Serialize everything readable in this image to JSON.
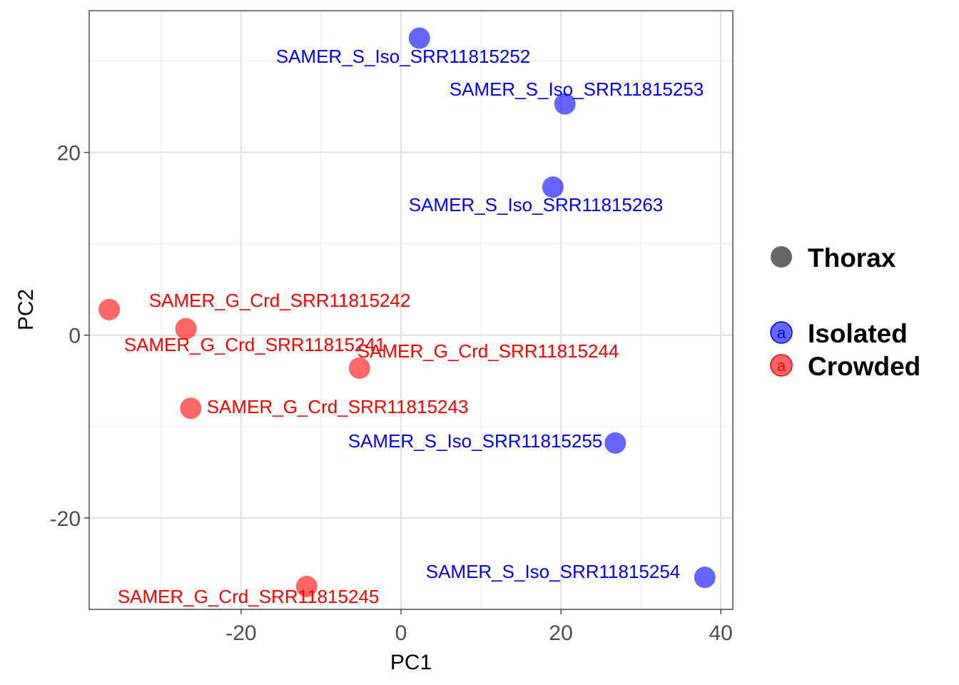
{
  "chart_data": {
    "type": "scatter",
    "title": "",
    "xlabel": "PC1",
    "ylabel": "PC2",
    "xlim": [
      -39,
      41.5
    ],
    "ylim": [
      -30,
      35.5
    ],
    "x_ticks": [
      -20,
      0,
      20,
      40
    ],
    "y_ticks": [
      -20,
      0,
      20
    ],
    "x_minor": [
      -30,
      -10,
      10,
      30
    ],
    "y_minor": [
      -30,
      -10,
      10,
      30
    ],
    "grid": true,
    "legend": {
      "shape_title": "Thorax",
      "shape_color": "#666666",
      "key_glyph": "a",
      "entries": [
        {
          "name": "Isolated",
          "color": "#0000ff"
        },
        {
          "name": "Crowded",
          "color": "#ff0000"
        }
      ]
    },
    "series": [
      {
        "name": "Isolated",
        "color": "#0000ff",
        "points": [
          {
            "x": 2.3,
            "y": 32.5,
            "label": "SAMER_S_Iso_SRR11815252"
          },
          {
            "x": 20.5,
            "y": 25.3,
            "label": "SAMER_S_Iso_SRR11815253"
          },
          {
            "x": 19.0,
            "y": 16.2,
            "label": "SAMER_S_Iso_SRR11815263"
          },
          {
            "x": 26.8,
            "y": -11.8,
            "label": "SAMER_S_Iso_SRR11815255"
          },
          {
            "x": 38.0,
            "y": -26.5,
            "label": "SAMER_S_Iso_SRR11815254"
          }
        ]
      },
      {
        "name": "Crowded",
        "color": "#ff0000",
        "points": [
          {
            "x": -36.5,
            "y": 2.8,
            "label": "SAMER_G_Crd_SRR11815242"
          },
          {
            "x": -26.9,
            "y": 0.7,
            "label": "SAMER_G_Crd_SRR11815241"
          },
          {
            "x": -5.2,
            "y": -3.6,
            "label": "SAMER_G_Crd_SRR11815244"
          },
          {
            "x": -26.3,
            "y": -8.0,
            "label": "SAMER_G_Crd_SRR11815243"
          },
          {
            "x": -11.8,
            "y": -27.5,
            "label": "SAMER_G_Crd_SRR11815245"
          }
        ]
      }
    ]
  }
}
